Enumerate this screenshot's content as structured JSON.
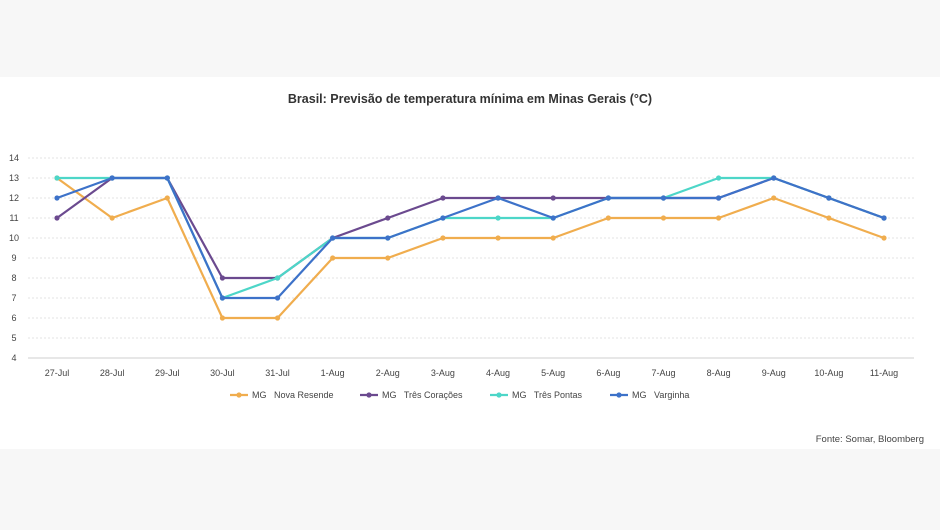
{
  "chart_data": {
    "type": "line",
    "title": "Brasil: Previsão de temperatura mínima em Minas Gerais (°C)",
    "xlabel": "",
    "ylabel": "",
    "categories": [
      "27-Jul",
      "28-Jul",
      "29-Jul",
      "30-Jul",
      "31-Jul",
      "1-Aug",
      "2-Aug",
      "3-Aug",
      "4-Aug",
      "5-Aug",
      "6-Aug",
      "7-Aug",
      "8-Aug",
      "9-Aug",
      "10-Aug",
      "11-Aug"
    ],
    "y_ticks": [
      4,
      5,
      6,
      7,
      8,
      9,
      10,
      11,
      12,
      13,
      14
    ],
    "ylim": [
      4,
      14
    ],
    "grid": true,
    "legend_position": "bottom",
    "series": [
      {
        "name": "MG   Nova Resende",
        "color": "#f0ad4e",
        "values": [
          13,
          11,
          12,
          6,
          6,
          9,
          9,
          10,
          10,
          10,
          11,
          11,
          11,
          12,
          11,
          10
        ]
      },
      {
        "name": "MG   Três Corações",
        "color": "#6b4a8f",
        "values": [
          11,
          13,
          13,
          8,
          8,
          10,
          11,
          12,
          12,
          12,
          12,
          12,
          12,
          13,
          12,
          11
        ]
      },
      {
        "name": "MG   Três Pontas",
        "color": "#4dd6c8",
        "values": [
          13,
          13,
          13,
          7,
          8,
          10,
          10,
          11,
          11,
          11,
          12,
          12,
          13,
          13,
          12,
          11
        ]
      },
      {
        "name": "MG   Varginha",
        "color": "#3d72c9",
        "values": [
          12,
          13,
          13,
          7,
          7,
          10,
          10,
          11,
          12,
          11,
          12,
          12,
          12,
          13,
          12,
          11
        ]
      }
    ],
    "source": "Fonte: Somar, Bloomberg"
  }
}
